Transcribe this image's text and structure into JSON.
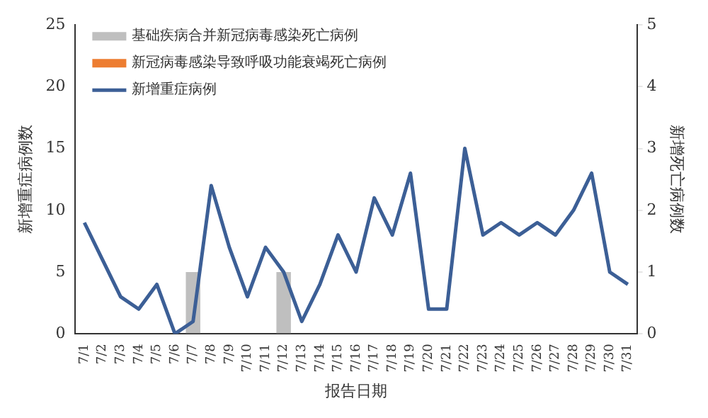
{
  "chart_data": {
    "type": "bar",
    "xlabel": "报告日期",
    "ylabel": "新增重症病例数",
    "y2label": "新增死亡病例数",
    "categories": [
      "7/1",
      "7/2",
      "7/3",
      "7/4",
      "7/5",
      "7/6",
      "7/7",
      "7/8",
      "7/9",
      "7/10",
      "7/11",
      "7/12",
      "7/13",
      "7/14",
      "7/15",
      "7/16",
      "7/17",
      "7/18",
      "7/19",
      "7/20",
      "7/21",
      "7/22",
      "7/23",
      "7/24",
      "7/25",
      "7/26",
      "7/27",
      "7/28",
      "7/29",
      "7/30",
      "7/31"
    ],
    "series": [
      {
        "name": "基础疾病合并新冠病毒感染死亡病例",
        "axis": "y2",
        "color": "#bfbfbf",
        "values": [
          null,
          null,
          null,
          null,
          null,
          null,
          1,
          null,
          null,
          null,
          null,
          1,
          null,
          null,
          null,
          null,
          null,
          null,
          null,
          null,
          null,
          null,
          null,
          null,
          null,
          null,
          null,
          null,
          null,
          null,
          null
        ]
      },
      {
        "name": "新冠病毒感染导致呼吸功能衰竭死亡病例",
        "axis": "y2",
        "color": "#ed7d31",
        "values": [
          null,
          null,
          null,
          null,
          null,
          null,
          null,
          null,
          null,
          null,
          null,
          null,
          null,
          null,
          null,
          null,
          null,
          null,
          null,
          null,
          null,
          null,
          null,
          null,
          null,
          null,
          null,
          null,
          null,
          null,
          null
        ]
      },
      {
        "name": "新增重症病例",
        "type": "line",
        "color": "#3c5f96",
        "values": [
          9,
          6,
          3,
          2,
          4,
          0,
          1,
          12,
          7,
          3,
          7,
          5,
          1,
          4,
          8,
          5,
          11,
          8,
          13,
          2,
          2,
          15,
          8,
          9,
          8,
          9,
          8,
          10,
          13,
          5,
          4
        ]
      }
    ],
    "ylim": [
      0,
      25
    ],
    "yticks": [
      0,
      5,
      10,
      15,
      20,
      25
    ],
    "y2lim": [
      0,
      5
    ],
    "y2ticks": [
      0,
      1,
      2,
      3,
      4,
      5
    ],
    "grid": false,
    "legend": "top left",
    "marker": "none",
    "line_style": "solid"
  }
}
